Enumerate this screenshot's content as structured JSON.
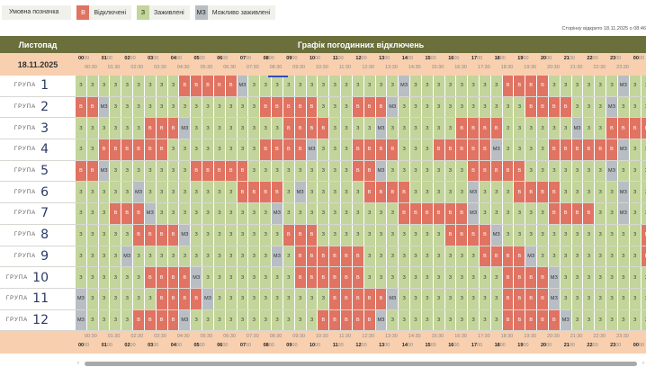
{
  "legend": {
    "title": "Умовна позначка",
    "items": [
      {
        "code": "В",
        "label": "Відключені"
      },
      {
        "code": "З",
        "label": "Заживлені"
      },
      {
        "code": "МЗ",
        "label": "Можливо заживлені"
      }
    ]
  },
  "viewed_text": "Сторінку відкрито 18.11.2025 о 08:46",
  "header": {
    "month": "Листопад",
    "title": "Графік погодинних відключень"
  },
  "date": "18.11.2025",
  "hours": [
    "00",
    "01",
    "02",
    "03",
    "04",
    "05",
    "06",
    "07",
    "08",
    "09",
    "10",
    "11",
    "12",
    "13",
    "14",
    "15",
    "16",
    "17",
    "18",
    "19",
    "20",
    "21",
    "22",
    "23",
    "00"
  ],
  "half_hours": [
    "00:30",
    "01:30",
    "02:30",
    "03:30",
    "04:30",
    "05:30",
    "06:30",
    "07:30",
    "08:30",
    "09:30",
    "10:30",
    "11:30",
    "12:30",
    "13:30",
    "14:30",
    "15:30",
    "16:30",
    "17:30",
    "18:30",
    "19:30",
    "20:30",
    "21:30",
    "22:30",
    "23:30"
  ],
  "group_word": "ГРУПА",
  "groups": [
    {
      "number": "1",
      "cells": "ZZZZZZZZZBBBBBMZZZZZZZZZZZZZMZZZZZZZZBBBBZZZZZZMZZZZZZZZZZZZ"
    },
    {
      "number": "2",
      "cells": "BBMZZZZZZZZZZZZZBBBBBZZZBBBMZZZZZZZZZZZBBBBZZZMZZZZZZZZBBMZ"
    },
    {
      "number": "3",
      "cells": "ZZZZZZBBBMZZZZZZZZBBBBZZZZMZZZZZZBBBBZZZZZZMZZBBBBZZMZZZZZZZ"
    },
    {
      "number": "4",
      "cells": "ZZBBBBBBZZZZZZZZBBBBMZZZBBBBZZZBBBBBMZZZZBBBBBBMZZZZZZZBBBB"
    },
    {
      "number": "5",
      "cells": "BBMZZZZZZZBBBBBZZZZZZZZZBBMZZZZZZZBBBBBZZZZZZZMZZZZZZBBBBBZ"
    },
    {
      "number": "6",
      "cells": "ZZZZZMZZZZZZZZBBBBZMZZZZZBBBBZZZZZMZZZBBBBZZZZZMZZZZZBBBBBZ"
    },
    {
      "number": "7",
      "cells": "ZZZBBBMZZZZZZZZZZMZZZZZZZZZZBBBBBBMZZZZZZBBBBZZMZZZZZZZZZZZ"
    },
    {
      "number": "8",
      "cells": "ZZZZZBBBBMZZZZZZZZBBBZZZZZZZZZZZBBBBMZZZZZZZZZZZZBBBMZZZZZZZ"
    },
    {
      "number": "9",
      "cells": "ZZZZMZZZZZZZZZZZZMZBBBBBBZZZZZZZZZZBBBBMZZZZZZZZZBBBBMZZZZZ"
    },
    {
      "number": "10",
      "cells": "ZZZZZZBBBBMZZZZZZZZBBBBBBZZZZZZZZZZZZBBBBMZZZZZZZZZZZZMZZZZ"
    },
    {
      "number": "11",
      "cells": "MZZZZZZBBBBMZZZZZZZZZZBBBBBMZZZZZZZZZBBBBMZZZZZZZZZZZZZZZZZ"
    },
    {
      "number": "12",
      "cells": "MZZZZBBBBMZZZZZZZZZZZBBBBBMZZZZZZZZZZBBBBBMZZZZZZZZZZZZZZZZ"
    }
  ],
  "cell_codes": {
    "Z": "З",
    "B": "В",
    "M": "МЗ"
  },
  "colors": {
    "off": "#e07362",
    "on": "#c3d59a",
    "maybe": "#b8bec4",
    "header": "#6a6f3b",
    "time_band": "#f8d0b0"
  }
}
